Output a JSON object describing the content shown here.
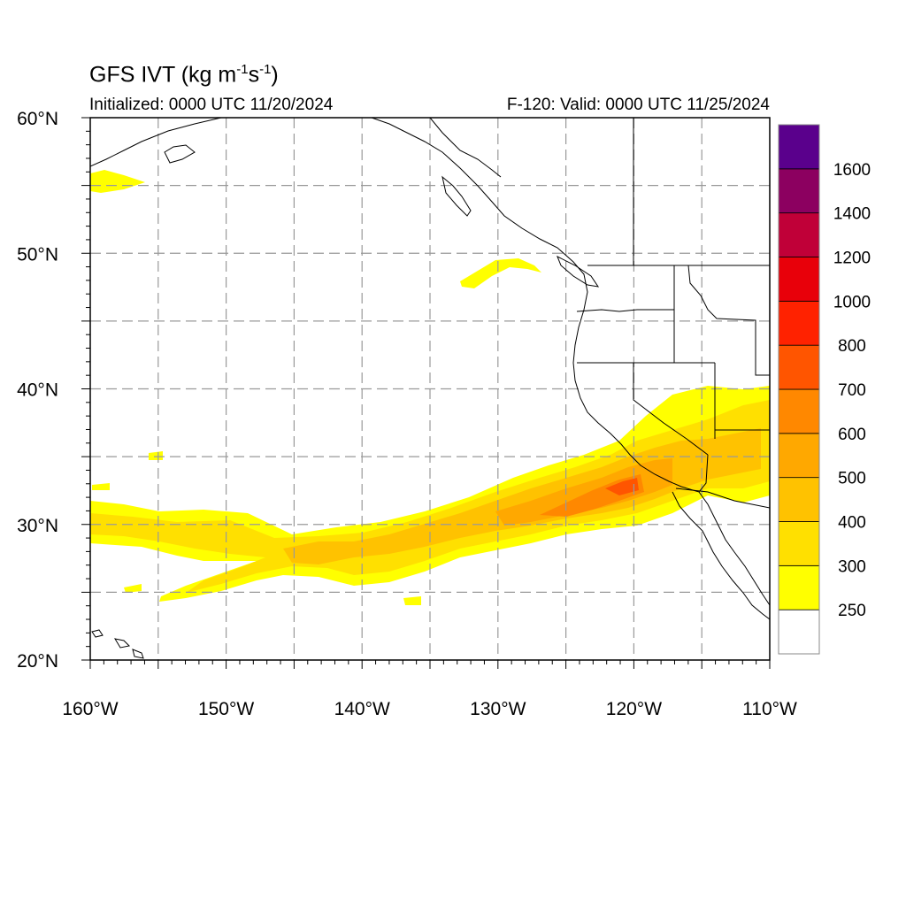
{
  "header": {
    "title_prefix": "GFS IVT (kg m",
    "title_exp1": "-1",
    "title_mid": "s",
    "title_exp2": "-1",
    "title_suffix": ")",
    "initialized": "Initialized: 0000 UTC 11/20/2024",
    "valid": "F-120: Valid: 0000 UTC 11/25/2024"
  },
  "axes": {
    "lat_labels": [
      "60°N",
      "50°N",
      "40°N",
      "30°N",
      "20°N"
    ],
    "lon_labels": [
      "160°W",
      "150°W",
      "140°W",
      "130°W",
      "120°W",
      "110°W"
    ],
    "lat_range": [
      20,
      60
    ],
    "lon_range": [
      -160,
      -110
    ],
    "grid": true
  },
  "colorbar": {
    "levels": [
      250,
      300,
      400,
      500,
      600,
      700,
      800,
      1000,
      1200,
      1400,
      1600
    ],
    "labels": [
      "250",
      "300",
      "400",
      "500",
      "600",
      "700",
      "800",
      "1000",
      "1200",
      "1400",
      "1600"
    ],
    "colors": [
      "#ffffff",
      "#ffff00",
      "#ffe000",
      "#ffc200",
      "#ffa800",
      "#ff8800",
      "#ff5500",
      "#ff2200",
      "#e8000a",
      "#c00038",
      "#8c0060",
      "#5a008c"
    ]
  },
  "chart_data": {
    "type": "heatmap",
    "variable": "IVT",
    "unit": "kg m-1 s-1",
    "features": [
      {
        "name": "main atmospheric river core",
        "max_level": 800,
        "lon_span": [
          -160,
          -110
        ],
        "lat_span": [
          24,
          40
        ]
      },
      {
        "name": "west plume",
        "max_level": 300,
        "lon_span": [
          -160,
          -156
        ],
        "lat_span": [
          54,
          56
        ]
      },
      {
        "name": "north plume",
        "max_level": 300,
        "lon_span": [
          -132,
          -126
        ],
        "lat_span": [
          48,
          50
        ]
      }
    ]
  }
}
